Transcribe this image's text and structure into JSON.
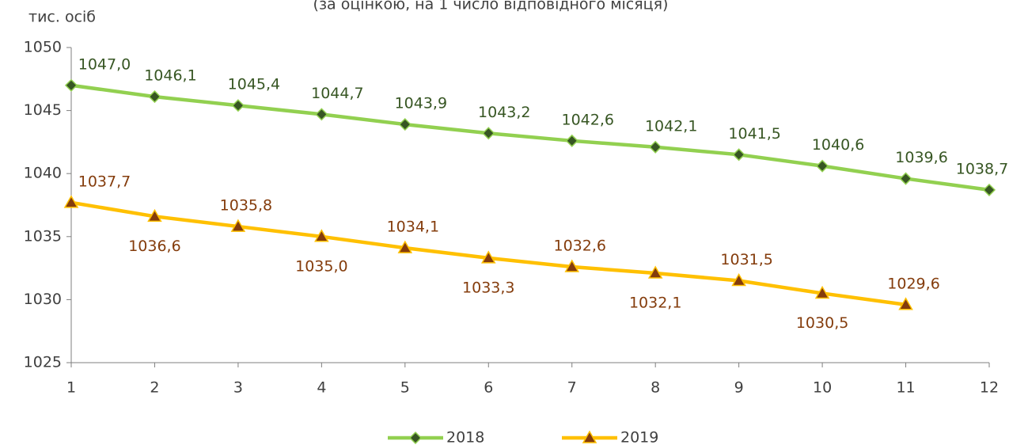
{
  "chart_data": {
    "type": "line",
    "subtitle": "(за оцінкою, на 1 число відповідного місяця)",
    "y_label": "тис. осіб",
    "x": [
      1,
      2,
      3,
      4,
      5,
      6,
      7,
      8,
      9,
      10,
      11,
      12
    ],
    "xlim": [
      1,
      12
    ],
    "xticks": [
      1,
      2,
      3,
      4,
      5,
      6,
      7,
      8,
      9,
      10,
      11,
      12
    ],
    "ylim": [
      1025,
      1050
    ],
    "yticks": [
      1025,
      1030,
      1035,
      1040,
      1045,
      1050
    ],
    "grid": false,
    "series": [
      {
        "name": "2018",
        "color": "#92d050",
        "marker": "diamond",
        "marker_color": "#375623",
        "label_color": "#375623",
        "values": [
          1047.0,
          1046.1,
          1045.4,
          1044.7,
          1043.9,
          1043.2,
          1042.6,
          1042.1,
          1041.5,
          1040.6,
          1039.6,
          1038.7
        ],
        "value_labels": [
          "1047,0",
          "1046,1",
          "1045,4",
          "1044,7",
          "1043,9",
          "1043,2",
          "1042,6",
          "1042,1",
          "1041,5",
          "1040,6",
          "1039,6",
          "1038,7"
        ]
      },
      {
        "name": "2019",
        "color": "#ffc000",
        "marker": "triangle",
        "marker_color": "#843c0c",
        "label_color": "#843c0c",
        "values": [
          1037.7,
          1036.6,
          1035.8,
          1035.0,
          1034.1,
          1033.3,
          1032.6,
          1032.1,
          1031.5,
          1030.5,
          1029.6,
          null
        ],
        "value_labels": [
          "1037,7",
          "1036,6",
          "1035,8",
          "1035,0",
          "1034,1",
          "1033,3",
          "1032,6",
          "1032,1",
          "1031,5",
          "1030,5",
          "1029,6",
          null
        ]
      }
    ]
  }
}
